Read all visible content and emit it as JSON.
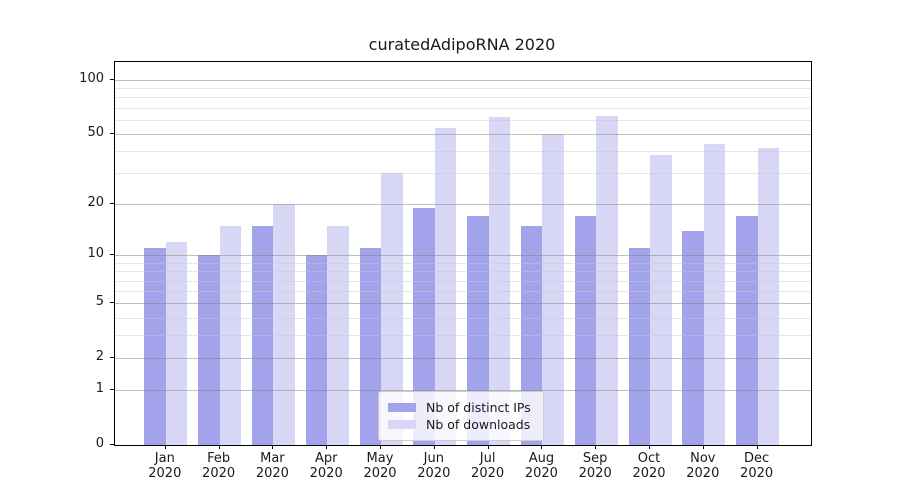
{
  "title": "curatedAdipoRNA 2020",
  "chart_data": {
    "type": "bar",
    "title": "curatedAdipoRNA 2020",
    "categories": [
      "Jan",
      "Feb",
      "Mar",
      "Apr",
      "May",
      "Jun",
      "Jul",
      "Aug",
      "Sep",
      "Oct",
      "Nov",
      "Dec"
    ],
    "category_year": "2020",
    "series": [
      {
        "name": "Nb of distinct IPs",
        "color": "#a3a3ec",
        "values": [
          11,
          10,
          15,
          10,
          11,
          19,
          17,
          15,
          17,
          11,
          14,
          17
        ]
      },
      {
        "name": "Nb of downloads",
        "color": "#d8d8f6",
        "values": [
          12,
          15,
          20,
          15,
          30,
          54,
          62,
          50,
          63,
          38,
          44,
          42
        ]
      }
    ],
    "xlabel": "",
    "ylabel": "",
    "yscale": "log1p",
    "yticks": [
      0,
      1,
      2,
      5,
      10,
      20,
      50,
      100
    ],
    "minor_gridlines": [
      3,
      4,
      6,
      7,
      8,
      9,
      30,
      40,
      60,
      70,
      80,
      90
    ],
    "ylim": [
      0,
      126
    ],
    "grid": "horizontal",
    "legend_position": "lower center"
  }
}
